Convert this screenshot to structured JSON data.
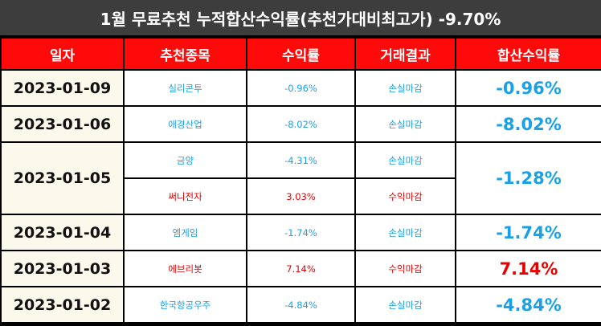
{
  "title": "1월 무료추천 누적합산수익률(추천가대비최고가) -9.70%",
  "headers": [
    "일자",
    "추천종목",
    "수익률",
    "거래결과",
    "합산수익률"
  ],
  "rows": [
    {
      "date": "2023-01-09",
      "stock": "실리콘투",
      "return": "-0.96%",
      "result": "손실마감",
      "total": "-0.96%"
    },
    {
      "date": "2023-01-06",
      "stock": "애경산업",
      "return": "-8.02%",
      "result": "손실마감",
      "total": "-8.02%"
    },
    {
      "date": "2023-01-05",
      "stock": "금양",
      "return": "-4.31%",
      "result": "손실마감",
      "total": "-1.28%"
    },
    {
      "stock": "써니전자",
      "return": "3.03%",
      "result": "수익마감"
    },
    {
      "date": "2023-01-04",
      "stock": "엠게임",
      "return": "-1.74%",
      "result": "손실마감",
      "total": "-1.74%"
    },
    {
      "date": "2023-01-03",
      "stock": "에브리봇",
      "return": "7.14%",
      "result": "수익마감",
      "total": "7.14%"
    },
    {
      "date": "2023-01-02",
      "stock": "한국항공우주",
      "return": "-4.84%",
      "result": "손실마감",
      "total": "-4.84%"
    }
  ],
  "colors": {
    "header_bg": "#ff0a0a",
    "title_bg": "#3d3d3d",
    "loss": "#1aa0e6",
    "gain": "#e80000",
    "date_bg": "#fbf8ec"
  }
}
